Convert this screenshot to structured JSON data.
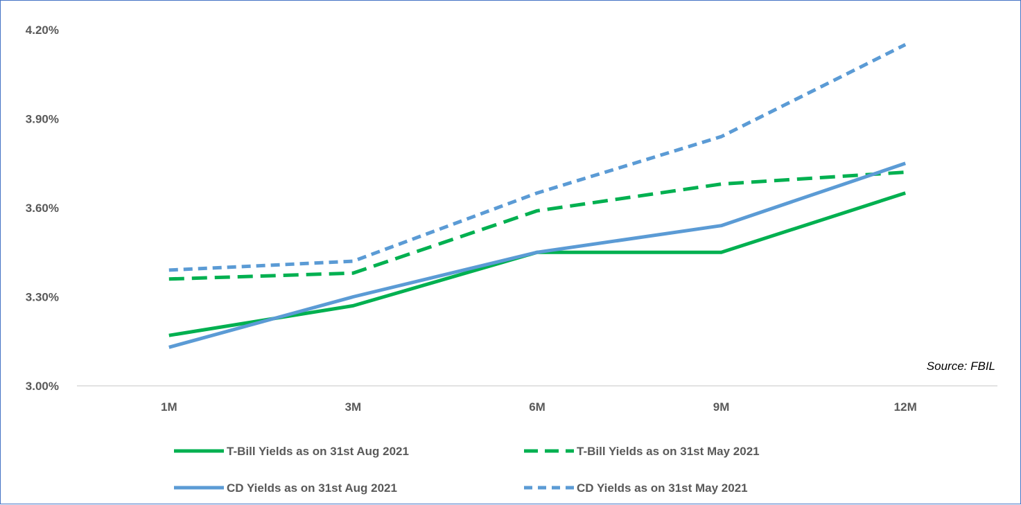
{
  "chart_data": {
    "type": "line",
    "categories": [
      "1M",
      "3M",
      "6M",
      "9M",
      "12M"
    ],
    "ylim": [
      3.0,
      4.2
    ],
    "yticks": [
      3.0,
      3.3,
      3.6,
      3.9,
      4.2
    ],
    "ytick_labels": [
      "3.00%",
      "3.30%",
      "3.60%",
      "3.90%",
      "4.20%"
    ],
    "grid": false,
    "legend_placement": "bottom",
    "annotation": "Source: FBIL",
    "series": [
      {
        "name": "T-Bill Yields as on 31st Aug 2021",
        "values": [
          3.17,
          3.27,
          3.45,
          3.45,
          3.65
        ],
        "color": "#00b050",
        "style": "solid"
      },
      {
        "name": "T-Bill Yields as on 31st May 2021",
        "values": [
          3.36,
          3.38,
          3.59,
          3.68,
          3.72
        ],
        "color": "#00b050",
        "style": "dashed"
      },
      {
        "name": "CD Yields as on 31st Aug 2021",
        "values": [
          3.13,
          3.3,
          3.45,
          3.54,
          3.75
        ],
        "color": "#5b9bd5",
        "style": "solid"
      },
      {
        "name": "CD Yields as on 31st May 2021",
        "values": [
          3.39,
          3.42,
          3.65,
          3.84,
          4.15
        ],
        "color": "#5b9bd5",
        "style": "dashed"
      }
    ]
  }
}
